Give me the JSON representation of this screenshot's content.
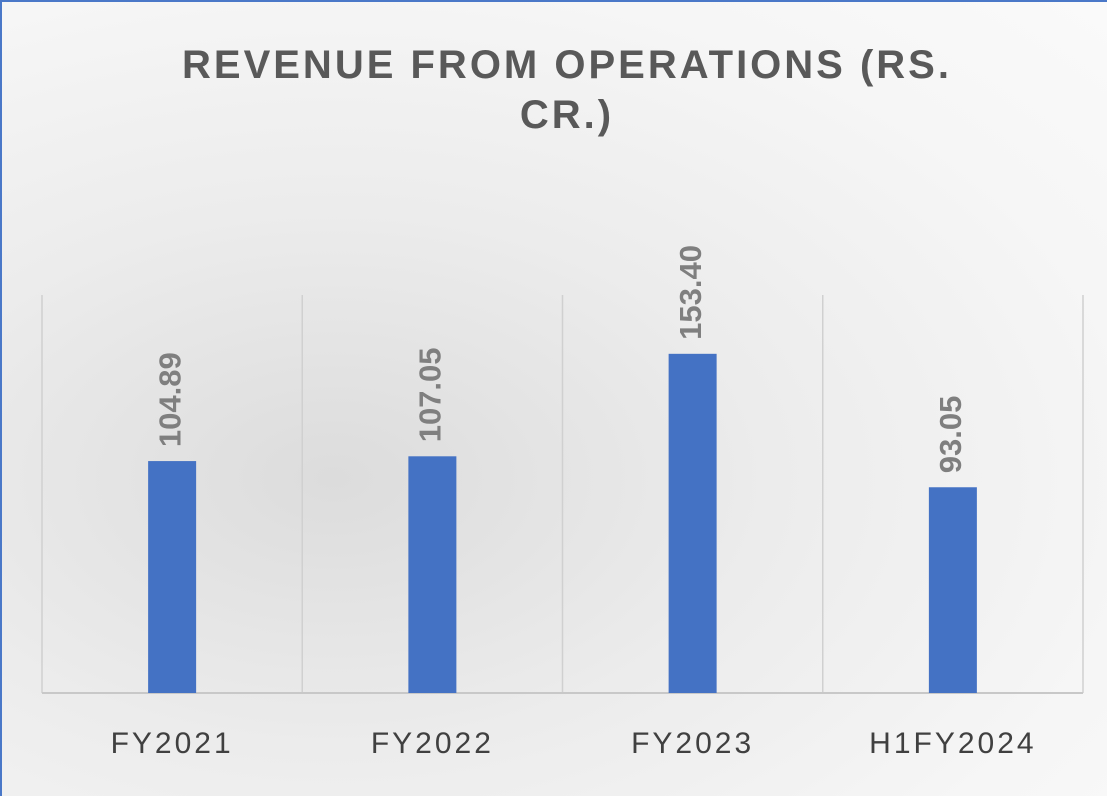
{
  "chart_data": {
    "type": "bar",
    "title": "REVENUE FROM OPERATIONS (RS. CR.)",
    "categories": [
      "FY2021",
      "FY2022",
      "FY2023",
      "H1FY2024"
    ],
    "values": [
      104.89,
      107.05,
      153.4,
      93.05
    ],
    "value_labels": [
      "104.89",
      "107.05",
      "153.40",
      "93.05"
    ],
    "color": "#4472c4",
    "ylim": [
      0,
      180
    ]
  }
}
